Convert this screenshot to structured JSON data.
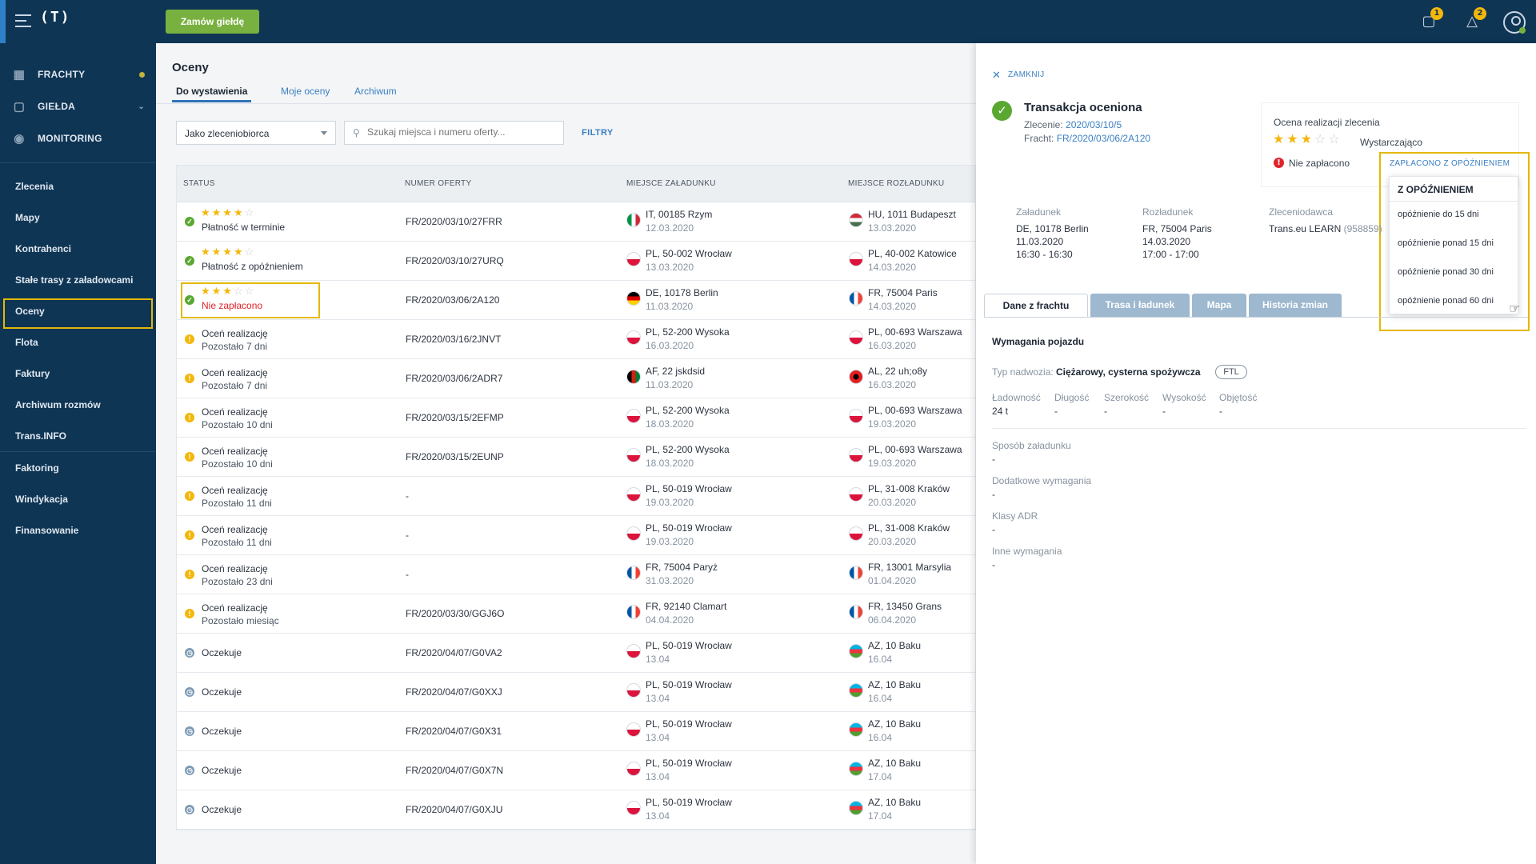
{
  "topbar": {
    "logo": "(T)",
    "order_button": "Zamów giełdę",
    "messages_badge": "1",
    "notifications_badge": "2"
  },
  "sidebar": {
    "main": [
      {
        "label": "FRACHTY",
        "icon": "freight-icon"
      },
      {
        "label": "GIEŁDA",
        "icon": "exchange-box-icon"
      },
      {
        "label": "MONITORING",
        "icon": "monitoring-icon"
      }
    ],
    "items": [
      "Zlecenia",
      "Mapy",
      "Kontrahenci",
      "Stałe trasy z załadowcami",
      "Oceny",
      "Flota",
      "Faktury",
      "Archiwum rozmów",
      "Trans.INFO"
    ],
    "items2": [
      "Faktoring",
      "Windykacja",
      "Finansowanie"
    ]
  },
  "main": {
    "title": "Oceny",
    "tabs": [
      "Do wystawienia",
      "Moje oceny",
      "Archiwum"
    ],
    "select_value": "Jako zleceniobiorca",
    "search_placeholder": "Szukaj miejsca i numeru oferty...",
    "filters_label": "FILTRY",
    "columns": [
      "STATUS",
      "NUMER OFERTY",
      "MIEJSCE ZAŁADUNKU",
      "MIEJSCE ROZŁADUNKU"
    ]
  },
  "rows": [
    {
      "type": "rated",
      "stars": 4,
      "text": "Płatność w terminie",
      "red": false,
      "offer": "FR/2020/03/10/27FRR",
      "load_flag": "it",
      "load": "IT, 00185 Rzym",
      "load_date": "12.03.2020",
      "unload_flag": "hu",
      "unload": "HU, 1011 Budapeszt",
      "unload_date": "13.03.2020"
    },
    {
      "type": "rated",
      "stars": 4,
      "text": "Płatność z opóźnieniem",
      "red": false,
      "offer": "FR/2020/03/10/27URQ",
      "load_flag": "pl",
      "load": "PL, 50-002 Wrocław",
      "load_date": "13.03.2020",
      "unload_flag": "pl",
      "unload": "PL, 40-002 Katowice",
      "unload_date": "14.03.2020"
    },
    {
      "type": "rated",
      "stars": 3,
      "text": "Nie zapłacono",
      "red": true,
      "offer": "FR/2020/03/06/2A120",
      "load_flag": "de",
      "load": "DE, 10178 Berlin",
      "load_date": "11.03.2020",
      "unload_flag": "fr",
      "unload": "FR, 75004 Paris",
      "unload_date": "14.03.2020"
    },
    {
      "type": "rate",
      "text": "Oceń realizację",
      "sub": "Pozostało 7 dni",
      "offer": "FR/2020/03/16/2JNVT",
      "load_flag": "pl",
      "load": "PL, 52-200 Wysoka",
      "load_date": "16.03.2020",
      "unload_flag": "pl",
      "unload": "PL, 00-693 Warszawa",
      "unload_date": "16.03.2020"
    },
    {
      "type": "rate",
      "text": "Oceń realizację",
      "sub": "Pozostało 7 dni",
      "offer": "FR/2020/03/06/2ADR7",
      "load_flag": "af",
      "load": "AF, 22 jskdsid",
      "load_date": "11.03.2020",
      "unload_flag": "al",
      "unload": "AL, 22 uh;o8y",
      "unload_date": "16.03.2020"
    },
    {
      "type": "rate",
      "text": "Oceń realizację",
      "sub": "Pozostało 10 dni",
      "offer": "FR/2020/03/15/2EFMP",
      "load_flag": "pl",
      "load": "PL, 52-200 Wysoka",
      "load_date": "18.03.2020",
      "unload_flag": "pl",
      "unload": "PL, 00-693 Warszawa",
      "unload_date": "19.03.2020"
    },
    {
      "type": "rate",
      "text": "Oceń realizację",
      "sub": "Pozostało 10 dni",
      "offer": "FR/2020/03/15/2EUNP",
      "load_flag": "pl",
      "load": "PL, 52-200 Wysoka",
      "load_date": "18.03.2020",
      "unload_flag": "pl",
      "unload": "PL, 00-693 Warszawa",
      "unload_date": "19.03.2020"
    },
    {
      "type": "rate",
      "text": "Oceń realizację",
      "sub": "Pozostało 11 dni",
      "offer": "-",
      "load_flag": "pl",
      "load": "PL, 50-019 Wrocław",
      "load_date": "19.03.2020",
      "unload_flag": "pl",
      "unload": "PL, 31-008 Kraków",
      "unload_date": "20.03.2020"
    },
    {
      "type": "rate",
      "text": "Oceń realizację",
      "sub": "Pozostało 11 dni",
      "offer": "-",
      "load_flag": "pl",
      "load": "PL, 50-019 Wrocław",
      "load_date": "19.03.2020",
      "unload_flag": "pl",
      "unload": "PL, 31-008 Kraków",
      "unload_date": "20.03.2020"
    },
    {
      "type": "rate",
      "text": "Oceń realizację",
      "sub": "Pozostało 23 dni",
      "offer": "-",
      "load_flag": "fr",
      "load": "FR, 75004 Paryż",
      "load_date": "31.03.2020",
      "unload_flag": "fr",
      "unload": "FR, 13001 Marsylia",
      "unload_date": "01.04.2020"
    },
    {
      "type": "rate",
      "text": "Oceń realizację",
      "sub": "Pozostało miesiąc",
      "offer": "FR/2020/03/30/GGJ6O",
      "load_flag": "fr",
      "load": "FR, 92140 Clamart",
      "load_date": "04.04.2020",
      "unload_flag": "fr",
      "unload": "FR, 13450 Grans",
      "unload_date": "06.04.2020"
    },
    {
      "type": "wait",
      "text": "Oczekuje",
      "offer": "FR/2020/04/07/G0VA2",
      "load_flag": "pl",
      "load": "PL, 50-019 Wrocław",
      "load_date": "13.04",
      "unload_flag": "az",
      "unload": "AZ, 10 Baku",
      "unload_date": "16.04"
    },
    {
      "type": "wait",
      "text": "Oczekuje",
      "offer": "FR/2020/04/07/G0XXJ",
      "load_flag": "pl",
      "load": "PL, 50-019 Wrocław",
      "load_date": "13.04",
      "unload_flag": "az",
      "unload": "AZ, 10 Baku",
      "unload_date": "16.04"
    },
    {
      "type": "wait",
      "text": "Oczekuje",
      "offer": "FR/2020/04/07/G0X31",
      "load_flag": "pl",
      "load": "PL, 50-019 Wrocław",
      "load_date": "13.04",
      "unload_flag": "az",
      "unload": "AZ, 10 Baku",
      "unload_date": "16.04"
    },
    {
      "type": "wait",
      "text": "Oczekuje",
      "offer": "FR/2020/04/07/G0X7N",
      "load_flag": "pl",
      "load": "PL, 50-019 Wrocław",
      "load_date": "13.04",
      "unload_flag": "az",
      "unload": "AZ, 10 Baku",
      "unload_date": "17.04"
    },
    {
      "type": "wait",
      "text": "Oczekuje",
      "offer": "FR/2020/04/07/G0XJU",
      "load_flag": "pl",
      "load": "PL, 50-019 Wrocław",
      "load_date": "13.04",
      "unload_flag": "az",
      "unload": "AZ, 10 Baku",
      "unload_date": "17.04"
    }
  ],
  "panel": {
    "close_label": "ZAMKNIJ",
    "title": "Transakcja oceniona",
    "order_label": "Zlecenie:",
    "order_value": "2020/03/10/5",
    "freight_label": "Fracht:",
    "freight_value": "FR/2020/03/06/2A120",
    "rating_title": "Ocena realizacji zlecenia",
    "rating_stars": 3,
    "rating_word": "Wystarczająco",
    "unpaid_label": "Nie zapłacono",
    "paid_late_link": "ZAPŁACONO Z OPÓŹNIENIEM",
    "dropdown_head": "Z OPÓŹNIENIEM",
    "dropdown_options": [
      "opóźnienie do 15 dni",
      "opóźnienie ponad 15 dni",
      "opóźnienie ponad 30 dni",
      "opóźnienie ponad 60 dni"
    ],
    "loading_label": "Załadunek",
    "loading_place": "DE, 10178 Berlin",
    "loading_date": "11.03.2020",
    "loading_time": "16:30 - 16:30",
    "unloading_label": "Rozładunek",
    "unloading_place": "FR, 75004 Paris",
    "unloading_date": "14.03.2020",
    "unloading_time": "17:00 - 17:00",
    "client_label": "Zleceniodawca",
    "client_name": "Trans.eu LEARN",
    "client_id": "(958859)",
    "tabs": [
      "Dane z frachtu",
      "Trasa i ładunek",
      "Mapa",
      "Historia zmian"
    ],
    "req_title": "Wymagania pojazdu",
    "body_type_label": "Typ nadwozia:",
    "body_type_value": "Ciężarowy, cysterna spożywcza",
    "ftl": "FTL",
    "specs": [
      {
        "label": "Ładowność",
        "value": "24 t"
      },
      {
        "label": "Długość",
        "value": "-"
      },
      {
        "label": "Szerokość",
        "value": "-"
      },
      {
        "label": "Wysokość",
        "value": "-"
      },
      {
        "label": "Objętość",
        "value": "-"
      }
    ],
    "extras": [
      {
        "label": "Sposób załadunku",
        "value": "-"
      },
      {
        "label": "Dodatkowe wymagania",
        "value": "-"
      },
      {
        "label": "Klasy ADR",
        "value": "-"
      },
      {
        "label": "Inne wymagania",
        "value": "-"
      }
    ]
  }
}
